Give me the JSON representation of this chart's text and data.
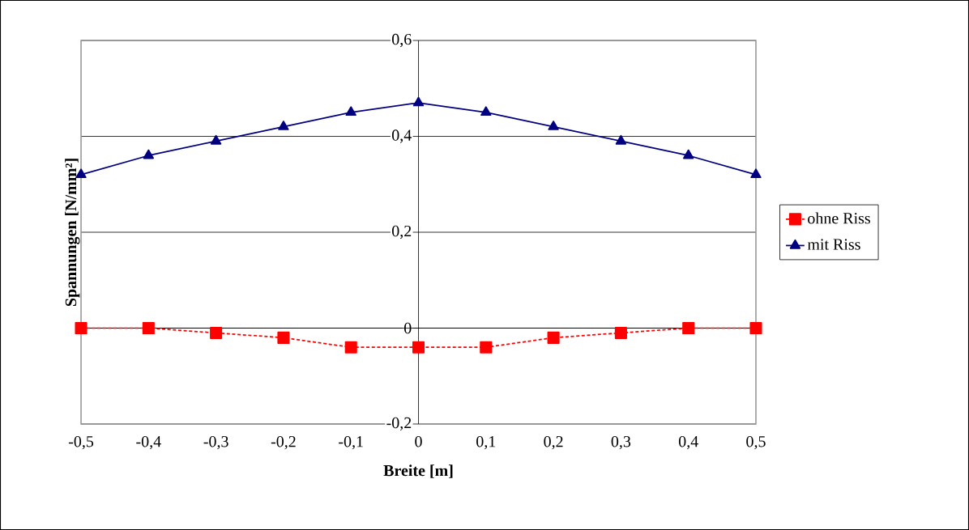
{
  "chart_data": {
    "type": "line",
    "xlabel": "Breite [m]",
    "ylabel": "Spannungen [N/mm²]",
    "x": [
      -0.5,
      -0.4,
      -0.3,
      -0.2,
      -0.1,
      0,
      0.1,
      0.2,
      0.3,
      0.4,
      0.5
    ],
    "series": [
      {
        "name": "ohne Riss",
        "color": "#ff0000",
        "marker": "square",
        "line_style": "dotted",
        "values": [
          0,
          0,
          -0.01,
          -0.02,
          -0.04,
          -0.04,
          -0.04,
          -0.02,
          -0.01,
          0,
          0
        ]
      },
      {
        "name": "mit Riss",
        "color": "#000080",
        "marker": "triangle",
        "line_style": "solid",
        "values": [
          0.32,
          0.36,
          0.39,
          0.42,
          0.45,
          0.47,
          0.45,
          0.42,
          0.39,
          0.36,
          0.32
        ]
      }
    ],
    "xlim": [
      -0.5,
      0.5
    ],
    "ylim": [
      -0.2,
      0.6
    ],
    "xticks": [
      {
        "value": -0.5,
        "label": "-0,5"
      },
      {
        "value": -0.4,
        "label": "-0,4"
      },
      {
        "value": -0.3,
        "label": "-0,3"
      },
      {
        "value": -0.2,
        "label": "-0,2"
      },
      {
        "value": -0.1,
        "label": "-0,1"
      },
      {
        "value": 0,
        "label": "0"
      },
      {
        "value": 0.1,
        "label": "0,1"
      },
      {
        "value": 0.2,
        "label": "0,2"
      },
      {
        "value": 0.3,
        "label": "0,3"
      },
      {
        "value": 0.4,
        "label": "0,4"
      },
      {
        "value": 0.5,
        "label": "0,5"
      }
    ],
    "yticks": [
      {
        "value": -0.2,
        "label": "-0,2"
      },
      {
        "value": 0,
        "label": "0"
      },
      {
        "value": 0.2,
        "label": "0,2"
      },
      {
        "value": 0.4,
        "label": "0,4"
      },
      {
        "value": 0.6,
        "label": "0,6"
      }
    ],
    "grid": "y",
    "legend": "right"
  }
}
